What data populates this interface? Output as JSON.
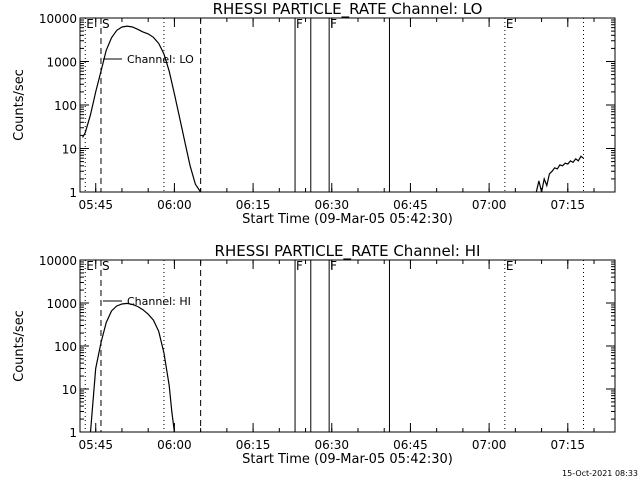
{
  "timestamp": "15-Oct-2021 08:33",
  "chart_data": [
    {
      "type": "line",
      "title": "RHESSI PARTICLE_RATE Channel: LO",
      "xlabel": "Start Time (09-Mar-05 05:42:30)",
      "ylabel": "Counts/sec",
      "y_scale": "log",
      "ylim": [
        1,
        10000
      ],
      "xlim": [
        "05:42",
        "07:24"
      ],
      "x_ticks": [
        "05:45",
        "06:00",
        "06:15",
        "06:30",
        "06:45",
        "07:00",
        "07:15"
      ],
      "y_ticks": [
        "1",
        "10",
        "100",
        "1000",
        "10000"
      ],
      "legend": "Channel: LO",
      "flags": [
        {
          "label": "E",
          "time": "05:43",
          "style": "dotted"
        },
        {
          "label": "S",
          "time": "05:46",
          "style": "dashed"
        },
        {
          "label": "",
          "time": "05:58",
          "style": "dotted"
        },
        {
          "label": "",
          "time": "06:05",
          "style": "dashed"
        },
        {
          "label": "F",
          "time": "06:23",
          "style": "solid"
        },
        {
          "label": "",
          "time": "06:26",
          "style": "solid"
        },
        {
          "label": "F",
          "time": "06:29.5",
          "style": "solid"
        },
        {
          "label": "",
          "time": "06:41",
          "style": "solid"
        },
        {
          "label": "E",
          "time": "07:03",
          "style": "dotted"
        },
        {
          "label": "",
          "time": "07:18",
          "style": "dotted"
        }
      ],
      "series": [
        {
          "segments": [
            [
              [
                "05:42.5",
                18
              ],
              [
                "05:43",
                23
              ],
              [
                "05:44",
                60
              ],
              [
                "05:45",
                200
              ],
              [
                "05:46",
                600
              ],
              [
                "05:47",
                1800
              ],
              [
                "05:48",
                3500
              ],
              [
                "05:49",
                5200
              ],
              [
                "05:50",
                6200
              ],
              [
                "05:51",
                6500
              ],
              [
                "05:52",
                6200
              ],
              [
                "05:53",
                5500
              ],
              [
                "05:54",
                4800
              ],
              [
                "05:55",
                4300
              ],
              [
                "05:56",
                3600
              ],
              [
                "05:57",
                2600
              ],
              [
                "05:58",
                1500
              ],
              [
                "05:59",
                600
              ],
              [
                "06:00",
                180
              ],
              [
                "06:01",
                50
              ],
              [
                "06:02",
                14
              ],
              [
                "06:03",
                4
              ],
              [
                "06:04",
                1.5
              ],
              [
                "06:05",
                1
              ]
            ],
            [
              [
                "07:09",
                1
              ],
              [
                "07:09.5",
                1.8
              ],
              [
                "07:10",
                1
              ],
              [
                "07:10.5",
                2
              ],
              [
                "07:11",
                1.4
              ],
              [
                "07:11.5",
                2.6
              ],
              [
                "07:12",
                3
              ],
              [
                "07:12.5",
                3.6
              ],
              [
                "07:13",
                3.4
              ],
              [
                "07:13.5",
                4.2
              ],
              [
                "07:14",
                4
              ],
              [
                "07:14.5",
                4.6
              ],
              [
                "07:15",
                4.4
              ],
              [
                "07:15.5",
                5.2
              ],
              [
                "07:16",
                4.8
              ],
              [
                "07:16.5",
                5.8
              ],
              [
                "07:17",
                5.2
              ],
              [
                "07:17.5",
                6.6
              ],
              [
                "07:18",
                6
              ]
            ]
          ]
        }
      ]
    },
    {
      "type": "line",
      "title": "RHESSI PARTICLE_RATE Channel: HI",
      "xlabel": "Start Time (09-Mar-05 05:42:30)",
      "ylabel": "Counts/sec",
      "y_scale": "log",
      "ylim": [
        1,
        10000
      ],
      "xlim": [
        "05:42",
        "07:24"
      ],
      "x_ticks": [
        "05:45",
        "06:00",
        "06:15",
        "06:30",
        "06:45",
        "07:00",
        "07:15"
      ],
      "y_ticks": [
        "1",
        "10",
        "100",
        "1000",
        "10000"
      ],
      "legend": "Channel: HI",
      "flags": [
        {
          "label": "E",
          "time": "05:43",
          "style": "dotted"
        },
        {
          "label": "S",
          "time": "05:46",
          "style": "dashed"
        },
        {
          "label": "",
          "time": "05:58",
          "style": "dotted"
        },
        {
          "label": "",
          "time": "06:05",
          "style": "dashed"
        },
        {
          "label": "F",
          "time": "06:23",
          "style": "solid"
        },
        {
          "label": "",
          "time": "06:26",
          "style": "solid"
        },
        {
          "label": "F",
          "time": "06:29.5",
          "style": "solid"
        },
        {
          "label": "",
          "time": "06:41",
          "style": "solid"
        },
        {
          "label": "E",
          "time": "07:03",
          "style": "dotted"
        },
        {
          "label": "",
          "time": "07:18",
          "style": "dotted"
        }
      ],
      "series": [
        {
          "segments": [
            [
              [
                "05:44",
                1
              ],
              [
                "05:45",
                30
              ],
              [
                "05:46",
                120
              ],
              [
                "05:47",
                350
              ],
              [
                "05:48",
                650
              ],
              [
                "05:49",
                850
              ],
              [
                "05:50",
                950
              ],
              [
                "05:51",
                980
              ],
              [
                "05:52",
                930
              ],
              [
                "05:53",
                830
              ],
              [
                "05:54",
                700
              ],
              [
                "05:55",
                550
              ],
              [
                "05:56",
                400
              ],
              [
                "05:57",
                220
              ],
              [
                "05:58",
                70
              ],
              [
                "05:59",
                12
              ],
              [
                "05:59.5",
                3
              ],
              [
                "06:00",
                1
              ]
            ]
          ]
        }
      ]
    }
  ]
}
